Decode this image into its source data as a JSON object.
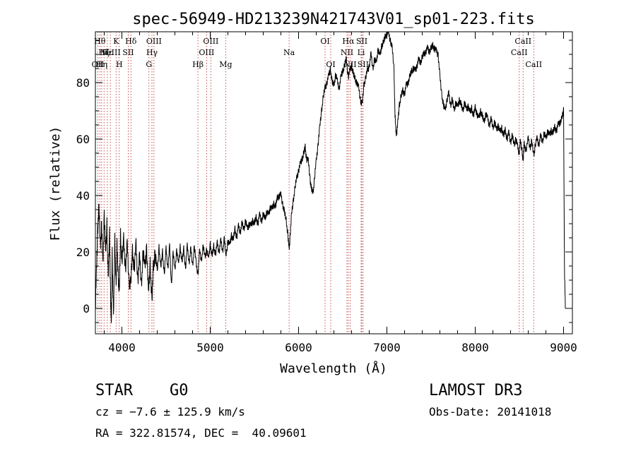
{
  "chart_data": {
    "type": "line",
    "title": "spec-56949-HD213239N421743V01_sp01-223.fits",
    "xlabel": "Wavelength (Å)",
    "ylabel": "Flux (relative)",
    "xlim": [
      3700,
      9100
    ],
    "ylim": [
      -9,
      98
    ],
    "xticks": [
      4000,
      5000,
      6000,
      7000,
      8000,
      9000
    ],
    "xtick_labels": [
      "4000",
      "5000",
      "6000",
      "7000",
      "8000",
      "9000"
    ],
    "yticks": [
      0,
      20,
      40,
      60,
      80
    ],
    "ytick_labels": [
      "0",
      "20",
      "40",
      "60",
      "80"
    ],
    "colors": {
      "line": "#000000",
      "marker": "#b22222"
    },
    "lines": [
      {
        "x": 3727,
        "label": "OII",
        "row": 2
      },
      {
        "x": 3750,
        "label": "Hθ",
        "row": 0
      },
      {
        "x": 3771,
        "label": "Hη",
        "row": 2
      },
      {
        "x": 3798,
        "label": "Hζ",
        "row": 1
      },
      {
        "x": 3835,
        "label": "Hε",
        "row": 1
      },
      {
        "x": 3869,
        "label": "NeIII",
        "row": 1
      },
      {
        "x": 3934,
        "label": "K",
        "row": 0
      },
      {
        "x": 3970,
        "label": "H",
        "row": 2
      },
      {
        "x": 4072,
        "label": "SII",
        "row": 1
      },
      {
        "x": 4102,
        "label": "Hδ",
        "row": 0
      },
      {
        "x": 4306,
        "label": "G",
        "row": 2
      },
      {
        "x": 4340,
        "label": "Hγ",
        "row": 1
      },
      {
        "x": 4363,
        "label": "OIII",
        "row": 0
      },
      {
        "x": 4861,
        "label": "Hβ",
        "row": 2
      },
      {
        "x": 4959,
        "label": "OIII",
        "row": 1
      },
      {
        "x": 5007,
        "label": "OIII",
        "row": 0
      },
      {
        "x": 5175,
        "label": "Mg",
        "row": 2
      },
      {
        "x": 5893,
        "label": "Na",
        "row": 1
      },
      {
        "x": 6300,
        "label": "OI",
        "row": 0
      },
      {
        "x": 6364,
        "label": "OI",
        "row": 2
      },
      {
        "x": 6548,
        "label": "NII",
        "row": 1
      },
      {
        "x": 6563,
        "label": "Hα",
        "row": 0
      },
      {
        "x": 6584,
        "label": "NII",
        "row": 2
      },
      {
        "x": 6708,
        "label": "Li",
        "row": 1
      },
      {
        "x": 6716,
        "label": "SII",
        "row": 0
      },
      {
        "x": 6731,
        "label": "SII",
        "row": 2
      },
      {
        "x": 8498,
        "label": "CaII",
        "row": 1
      },
      {
        "x": 8542,
        "label": "CaII",
        "row": 0
      },
      {
        "x": 8662,
        "label": "CaII",
        "row": 2
      }
    ],
    "series": [
      {
        "name": "flux",
        "points": [
          [
            3700,
            0
          ],
          [
            3712,
            12
          ],
          [
            3725,
            28
          ],
          [
            3740,
            35
          ],
          [
            3755,
            22
          ],
          [
            3770,
            30
          ],
          [
            3785,
            14
          ],
          [
            3800,
            34
          ],
          [
            3815,
            18
          ],
          [
            3830,
            30
          ],
          [
            3845,
            10
          ],
          [
            3860,
            26
          ],
          [
            3872,
            5
          ],
          [
            3880,
            -8
          ],
          [
            3890,
            20
          ],
          [
            3905,
            -4
          ],
          [
            3920,
            24
          ],
          [
            3934,
            8
          ],
          [
            3945,
            22
          ],
          [
            3958,
            12
          ],
          [
            3970,
            4
          ],
          [
            3985,
            26
          ],
          [
            4000,
            16
          ],
          [
            4020,
            24
          ],
          [
            4040,
            14
          ],
          [
            4060,
            22
          ],
          [
            4080,
            10
          ],
          [
            4100,
            8
          ],
          [
            4120,
            20
          ],
          [
            4140,
            14
          ],
          [
            4160,
            22
          ],
          [
            4180,
            10
          ],
          [
            4200,
            18
          ],
          [
            4220,
            8
          ],
          [
            4240,
            20
          ],
          [
            4260,
            14
          ],
          [
            4280,
            22
          ],
          [
            4300,
            4
          ],
          [
            4320,
            16
          ],
          [
            4340,
            2
          ],
          [
            4355,
            14
          ],
          [
            4375,
            20
          ],
          [
            4400,
            12
          ],
          [
            4420,
            22
          ],
          [
            4440,
            14
          ],
          [
            4460,
            20
          ],
          [
            4480,
            12
          ],
          [
            4500,
            21
          ],
          [
            4520,
            14
          ],
          [
            4540,
            22
          ],
          [
            4560,
            8
          ],
          [
            4580,
            20
          ],
          [
            4600,
            13
          ],
          [
            4620,
            21
          ],
          [
            4640,
            15
          ],
          [
            4660,
            22
          ],
          [
            4680,
            16
          ],
          [
            4700,
            21
          ],
          [
            4720,
            14
          ],
          [
            4740,
            22
          ],
          [
            4760,
            16
          ],
          [
            4780,
            21
          ],
          [
            4800,
            15
          ],
          [
            4820,
            22
          ],
          [
            4840,
            16
          ],
          [
            4861,
            12
          ],
          [
            4880,
            20
          ],
          [
            4900,
            17
          ],
          [
            4920,
            22
          ],
          [
            4940,
            18
          ],
          [
            4960,
            21
          ],
          [
            4980,
            17
          ],
          [
            5000,
            23
          ],
          [
            5020,
            18
          ],
          [
            5040,
            22
          ],
          [
            5060,
            19
          ],
          [
            5080,
            23
          ],
          [
            5100,
            20
          ],
          [
            5120,
            24
          ],
          [
            5140,
            20
          ],
          [
            5160,
            25
          ],
          [
            5175,
            18
          ],
          [
            5200,
            24
          ],
          [
            5220,
            22
          ],
          [
            5240,
            26
          ],
          [
            5260,
            24
          ],
          [
            5280,
            28
          ],
          [
            5300,
            25
          ],
          [
            5320,
            29
          ],
          [
            5340,
            27
          ],
          [
            5360,
            30
          ],
          [
            5380,
            28
          ],
          [
            5400,
            31
          ],
          [
            5420,
            28
          ],
          [
            5440,
            30
          ],
          [
            5460,
            29
          ],
          [
            5480,
            31
          ],
          [
            5500,
            30
          ],
          [
            5520,
            32
          ],
          [
            5540,
            30
          ],
          [
            5560,
            33
          ],
          [
            5580,
            31
          ],
          [
            5600,
            33
          ],
          [
            5620,
            32
          ],
          [
            5640,
            34
          ],
          [
            5660,
            33
          ],
          [
            5680,
            36
          ],
          [
            5700,
            35
          ],
          [
            5720,
            37
          ],
          [
            5740,
            36
          ],
          [
            5760,
            39
          ],
          [
            5780,
            40
          ],
          [
            5800,
            40
          ],
          [
            5820,
            37
          ],
          [
            5840,
            34
          ],
          [
            5860,
            31
          ],
          [
            5880,
            26
          ],
          [
            5893,
            20
          ],
          [
            5905,
            26
          ],
          [
            5920,
            33
          ],
          [
            5940,
            38
          ],
          [
            5960,
            43
          ],
          [
            5980,
            46
          ],
          [
            6000,
            49
          ],
          [
            6020,
            51
          ],
          [
            6040,
            53
          ],
          [
            6060,
            55
          ],
          [
            6075,
            57
          ],
          [
            6090,
            53
          ],
          [
            6110,
            52
          ],
          [
            6130,
            46
          ],
          [
            6145,
            42
          ],
          [
            6165,
            41
          ],
          [
            6180,
            46
          ],
          [
            6200,
            52
          ],
          [
            6220,
            58
          ],
          [
            6240,
            64
          ],
          [
            6260,
            70
          ],
          [
            6280,
            75
          ],
          [
            6300,
            78
          ],
          [
            6320,
            80
          ],
          [
            6340,
            82
          ],
          [
            6360,
            85
          ],
          [
            6380,
            80
          ],
          [
            6400,
            79
          ],
          [
            6420,
            83
          ],
          [
            6440,
            80
          ],
          [
            6460,
            78
          ],
          [
            6480,
            82
          ],
          [
            6500,
            84
          ],
          [
            6520,
            86
          ],
          [
            6540,
            88
          ],
          [
            6563,
            82
          ],
          [
            6580,
            84
          ],
          [
            6600,
            86
          ],
          [
            6620,
            83
          ],
          [
            6640,
            81
          ],
          [
            6660,
            80
          ],
          [
            6680,
            78
          ],
          [
            6700,
            74
          ],
          [
            6720,
            72
          ],
          [
            6740,
            79
          ],
          [
            6760,
            82
          ],
          [
            6780,
            84
          ],
          [
            6800,
            86
          ],
          [
            6820,
            90
          ],
          [
            6840,
            85
          ],
          [
            6860,
            88
          ],
          [
            6880,
            87
          ],
          [
            6900,
            92
          ],
          [
            6920,
            89
          ],
          [
            6940,
            93
          ],
          [
            6960,
            94
          ],
          [
            6980,
            96
          ],
          [
            7000,
            98
          ],
          [
            7020,
            97
          ],
          [
            7040,
            95
          ],
          [
            7060,
            92
          ],
          [
            7080,
            85
          ],
          [
            7090,
            70
          ],
          [
            7100,
            63
          ],
          [
            7110,
            62
          ],
          [
            7125,
            66
          ],
          [
            7140,
            72
          ],
          [
            7160,
            75
          ],
          [
            7180,
            77
          ],
          [
            7200,
            76
          ],
          [
            7220,
            79
          ],
          [
            7240,
            80
          ],
          [
            7260,
            82
          ],
          [
            7280,
            84
          ],
          [
            7300,
            85
          ],
          [
            7320,
            84
          ],
          [
            7340,
            86
          ],
          [
            7360,
            88
          ],
          [
            7380,
            87
          ],
          [
            7400,
            89
          ],
          [
            7420,
            90
          ],
          [
            7440,
            91
          ],
          [
            7460,
            92
          ],
          [
            7480,
            91
          ],
          [
            7500,
            92
          ],
          [
            7520,
            93
          ],
          [
            7540,
            92
          ],
          [
            7560,
            91
          ],
          [
            7580,
            90
          ],
          [
            7600,
            82
          ],
          [
            7620,
            76
          ],
          [
            7640,
            72
          ],
          [
            7660,
            70
          ],
          [
            7680,
            74
          ],
          [
            7700,
            76
          ],
          [
            7720,
            72
          ],
          [
            7740,
            74
          ],
          [
            7760,
            70
          ],
          [
            7780,
            73
          ],
          [
            7800,
            71
          ],
          [
            7820,
            74
          ],
          [
            7840,
            72
          ],
          [
            7860,
            70
          ],
          [
            7880,
            73
          ],
          [
            7900,
            70
          ],
          [
            7920,
            72
          ],
          [
            7940,
            69
          ],
          [
            7960,
            71
          ],
          [
            7980,
            68
          ],
          [
            8000,
            71
          ],
          [
            8020,
            69
          ],
          [
            8040,
            67
          ],
          [
            8060,
            70
          ],
          [
            8080,
            68
          ],
          [
            8100,
            66
          ],
          [
            8120,
            69
          ],
          [
            8140,
            67
          ],
          [
            8160,
            65
          ],
          [
            8180,
            67
          ],
          [
            8200,
            64
          ],
          [
            8220,
            66
          ],
          [
            8240,
            63
          ],
          [
            8260,
            65
          ],
          [
            8280,
            62
          ],
          [
            8300,
            64
          ],
          [
            8320,
            61
          ],
          [
            8340,
            63
          ],
          [
            8360,
            60
          ],
          [
            8380,
            62
          ],
          [
            8400,
            59
          ],
          [
            8420,
            61
          ],
          [
            8440,
            58
          ],
          [
            8460,
            60
          ],
          [
            8480,
            57
          ],
          [
            8498,
            55
          ],
          [
            8510,
            59
          ],
          [
            8530,
            56
          ],
          [
            8542,
            52
          ],
          [
            8555,
            58
          ],
          [
            8575,
            56
          ],
          [
            8600,
            60
          ],
          [
            8620,
            57
          ],
          [
            8640,
            59
          ],
          [
            8662,
            54
          ],
          [
            8680,
            58
          ],
          [
            8700,
            60
          ],
          [
            8720,
            58
          ],
          [
            8740,
            61
          ],
          [
            8760,
            59
          ],
          [
            8780,
            62
          ],
          [
            8800,
            60
          ],
          [
            8820,
            63
          ],
          [
            8840,
            61
          ],
          [
            8860,
            63
          ],
          [
            8880,
            62
          ],
          [
            8900,
            64
          ],
          [
            8920,
            63
          ],
          [
            8940,
            65
          ],
          [
            8960,
            66
          ],
          [
            8980,
            67
          ],
          [
            9000,
            70
          ],
          [
            9010,
            14
          ],
          [
            9020,
            0
          ]
        ]
      }
    ]
  },
  "info": {
    "object_class": "STAR",
    "subclass": "G0",
    "survey": "LAMOST DR3",
    "redshift": "cz = −7.6 ± 125.9 km/s",
    "obs_date": "Obs-Date: 20141018",
    "coordinates": "RA = 322.81574, DEC =  40.09601"
  }
}
